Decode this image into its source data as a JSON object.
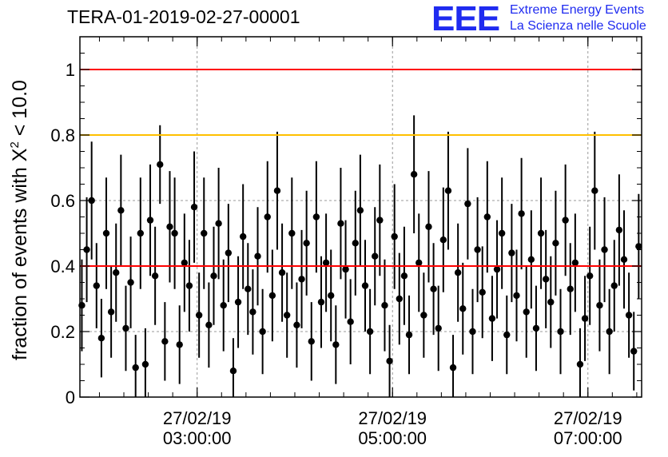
{
  "title": "TERA-01-2019-02-27-00001",
  "logo": {
    "mark": "EEE",
    "line1": "Extreme Energy Events",
    "line2": "La Scienza nelle Scuole"
  },
  "colors": {
    "points": "#000000",
    "upper_line": "#ff0000",
    "warning_line": "#ffc000",
    "mean_line": "#ff0000",
    "logo": "#1f2bf0",
    "grid": "#9a9a9a"
  },
  "chart_data": {
    "type": "scatter",
    "title": "TERA-01-2019-02-27-00001",
    "ylabel": "fraction of events with χ² < 10.0",
    "ylabel_main": "fraction of events with X",
    "ylabel_sup": "2",
    "ylabel_tail": "< 10.0",
    "ylim": [
      0,
      1.1
    ],
    "yticks": [
      0,
      0.2,
      0.4,
      0.6,
      0.8,
      1
    ],
    "ytick_labels": [
      "0",
      "0.2",
      "0.4",
      "0.6",
      "0.8",
      "1"
    ],
    "xlim_hours": [
      1.8,
      7.55
    ],
    "xticks_hours": [
      3,
      5,
      7
    ],
    "xtick_labels": [
      {
        "date": "27/02/19",
        "time": "03:00:00"
      },
      {
        "date": "27/02/19",
        "time": "05:00:00"
      },
      {
        "date": "27/02/19",
        "time": "07:00:00"
      }
    ],
    "reference_lines": [
      {
        "y": 1.0,
        "color": "#ff0000"
      },
      {
        "y": 0.8,
        "color": "#ffc000"
      },
      {
        "y": 0.4,
        "color": "#ff0000"
      }
    ],
    "grid": true,
    "series": [
      {
        "marker": "circle",
        "x_hours": [
          1.82,
          1.87,
          1.92,
          1.97,
          2.02,
          2.07,
          2.12,
          2.17,
          2.22,
          2.27,
          2.32,
          2.37,
          2.42,
          2.47,
          2.52,
          2.57,
          2.62,
          2.67,
          2.72,
          2.77,
          2.82,
          2.87,
          2.92,
          2.97,
          3.02,
          3.07,
          3.12,
          3.17,
          3.22,
          3.27,
          3.32,
          3.37,
          3.42,
          3.47,
          3.52,
          3.57,
          3.62,
          3.67,
          3.72,
          3.77,
          3.82,
          3.87,
          3.92,
          3.97,
          4.02,
          4.07,
          4.12,
          4.17,
          4.22,
          4.27,
          4.32,
          4.37,
          4.42,
          4.47,
          4.52,
          4.57,
          4.62,
          4.67,
          4.72,
          4.77,
          4.82,
          4.87,
          4.92,
          4.97,
          5.02,
          5.07,
          5.12,
          5.17,
          5.22,
          5.27,
          5.32,
          5.37,
          5.42,
          5.47,
          5.52,
          5.57,
          5.62,
          5.67,
          5.72,
          5.77,
          5.82,
          5.87,
          5.92,
          5.97,
          6.02,
          6.07,
          6.12,
          6.17,
          6.22,
          6.27,
          6.32,
          6.37,
          6.42,
          6.47,
          6.52,
          6.57,
          6.62,
          6.67,
          6.72,
          6.77,
          6.82,
          6.87,
          6.92,
          6.97,
          7.02,
          7.07,
          7.12,
          7.17,
          7.22,
          7.27,
          7.32,
          7.37,
          7.42,
          7.47,
          7.52
        ],
        "y": [
          0.28,
          0.45,
          0.6,
          0.34,
          0.18,
          0.5,
          0.26,
          0.38,
          0.57,
          0.21,
          0.35,
          0.09,
          0.5,
          0.1,
          0.54,
          0.37,
          0.71,
          0.17,
          0.52,
          0.5,
          0.16,
          0.41,
          0.34,
          0.58,
          0.25,
          0.5,
          0.22,
          0.37,
          0.53,
          0.28,
          0.44,
          0.08,
          0.29,
          0.49,
          0.33,
          0.26,
          0.43,
          0.2,
          0.55,
          0.31,
          0.63,
          0.38,
          0.25,
          0.5,
          0.22,
          0.36,
          0.47,
          0.17,
          0.55,
          0.29,
          0.41,
          0.31,
          0.16,
          0.53,
          0.39,
          0.23,
          0.47,
          0.57,
          0.34,
          0.2,
          0.43,
          0.54,
          0.28,
          0.11,
          0.49,
          0.3,
          0.37,
          0.19,
          0.68,
          0.41,
          0.25,
          0.52,
          0.33,
          0.21,
          0.48,
          0.63,
          0.09,
          0.38,
          0.27,
          0.59,
          0.2,
          0.45,
          0.32,
          0.55,
          0.24,
          0.39,
          0.5,
          0.19,
          0.44,
          0.31,
          0.56,
          0.26,
          0.42,
          0.21,
          0.5,
          0.36,
          0.29,
          0.47,
          0.2,
          0.54,
          0.33,
          0.41,
          0.1,
          0.24,
          0.37,
          0.63,
          0.28,
          0.45,
          0.2,
          0.34,
          0.51,
          0.42,
          0.25,
          0.14,
          0.46
        ],
        "err": [
          0.14,
          0.16,
          0.18,
          0.13,
          0.12,
          0.17,
          0.14,
          0.15,
          0.17,
          0.13,
          0.14,
          0.1,
          0.17,
          0.11,
          0.17,
          0.15,
          0.12,
          0.12,
          0.17,
          0.17,
          0.12,
          0.15,
          0.14,
          0.17,
          0.13,
          0.17,
          0.13,
          0.15,
          0.17,
          0.14,
          0.15,
          0.1,
          0.14,
          0.16,
          0.14,
          0.13,
          0.15,
          0.13,
          0.17,
          0.14,
          0.18,
          0.15,
          0.13,
          0.17,
          0.13,
          0.15,
          0.16,
          0.12,
          0.17,
          0.14,
          0.15,
          0.14,
          0.12,
          0.17,
          0.15,
          0.13,
          0.16,
          0.17,
          0.14,
          0.13,
          0.15,
          0.17,
          0.14,
          0.11,
          0.16,
          0.14,
          0.15,
          0.12,
          0.18,
          0.15,
          0.13,
          0.17,
          0.14,
          0.13,
          0.16,
          0.18,
          0.1,
          0.15,
          0.14,
          0.17,
          0.13,
          0.16,
          0.14,
          0.17,
          0.13,
          0.15,
          0.17,
          0.12,
          0.15,
          0.14,
          0.17,
          0.14,
          0.15,
          0.13,
          0.17,
          0.15,
          0.14,
          0.16,
          0.13,
          0.17,
          0.14,
          0.15,
          0.11,
          0.13,
          0.15,
          0.18,
          0.14,
          0.16,
          0.13,
          0.14,
          0.17,
          0.15,
          0.13,
          0.12,
          0.16
        ]
      }
    ]
  }
}
